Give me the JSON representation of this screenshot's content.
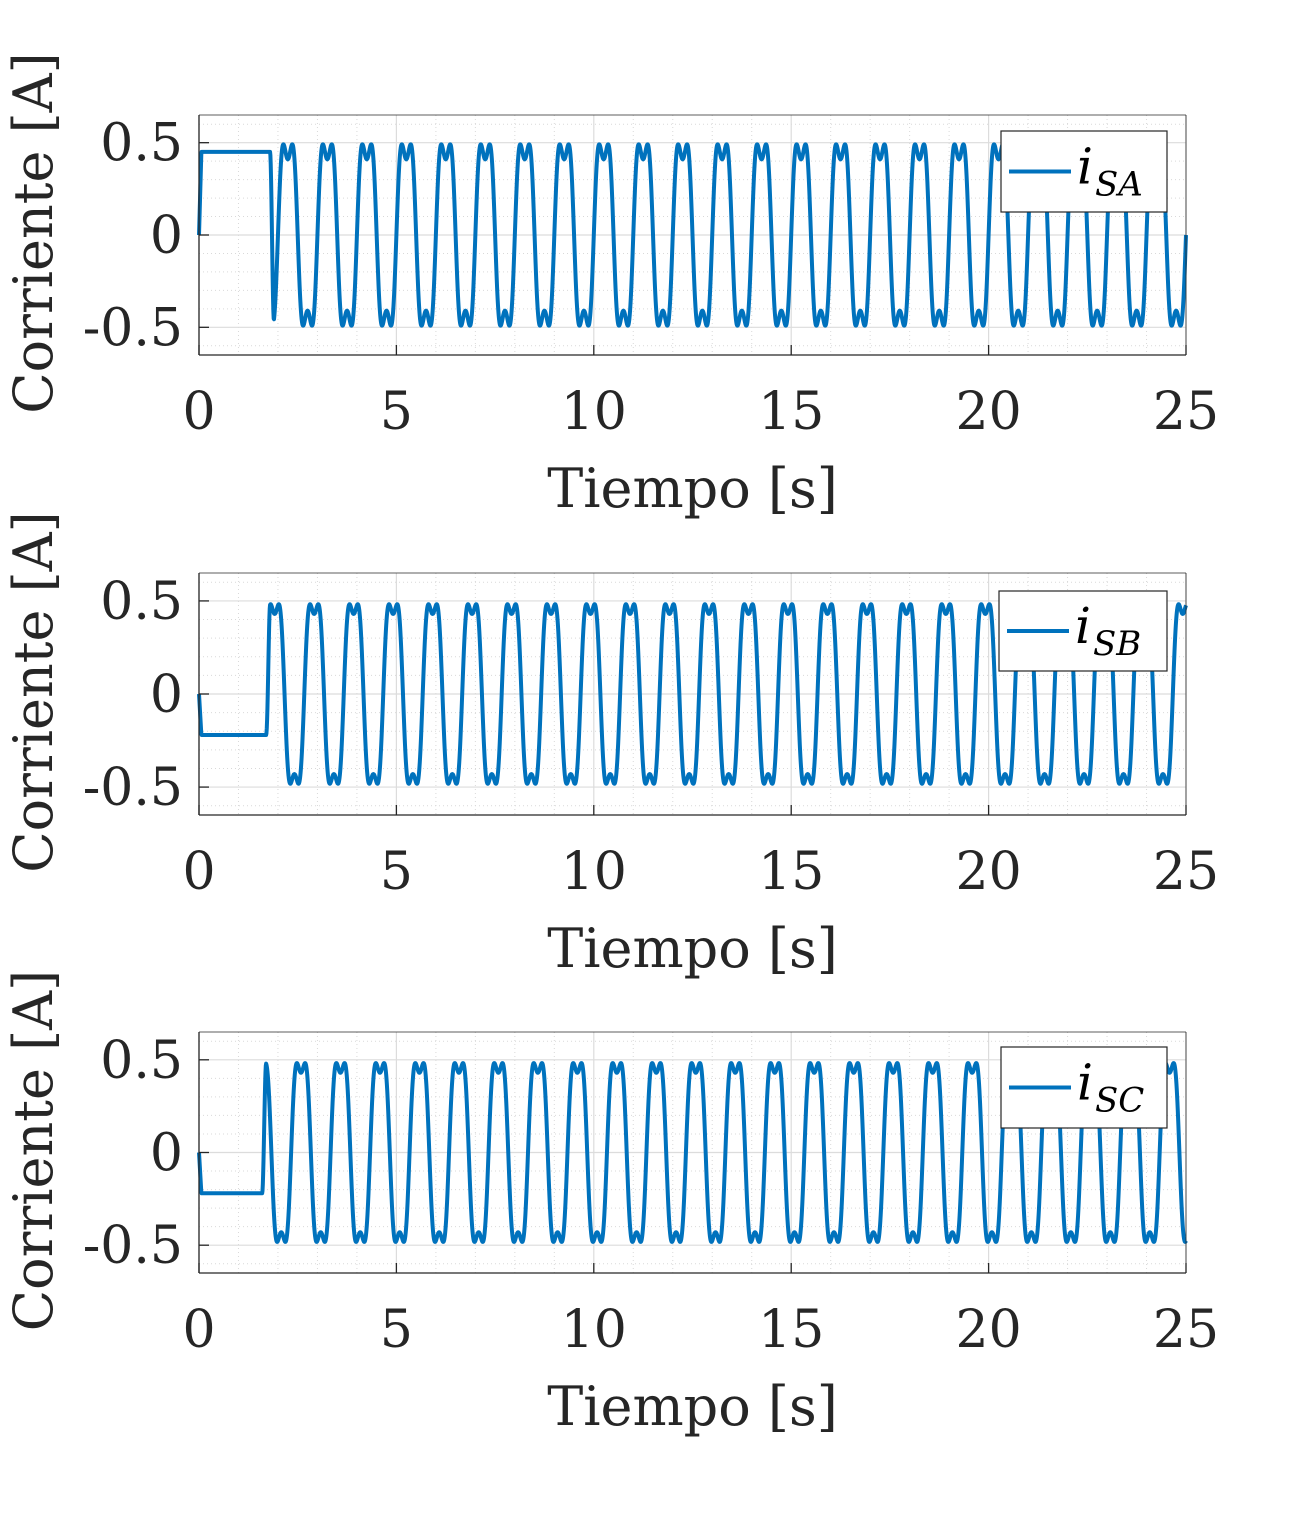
{
  "chart_data": [
    {
      "type": "line",
      "xlabel": "Tiempo [s]",
      "ylabel": "Corriente [A]",
      "xlim": [
        0,
        25
      ],
      "ylim": [
        -0.65,
        0.65
      ],
      "xticks": [
        "0",
        "5",
        "10",
        "15",
        "20",
        "25"
      ],
      "yticks": [
        "-0.5",
        "0",
        "0.5"
      ],
      "ytick_values": [
        -0.5,
        0,
        0.5
      ],
      "grid": true,
      "minor_grid": true,
      "legend_position": "top-right",
      "series": [
        {
          "name_main": "i",
          "name_sub": "SA",
          "color": "#0072BD",
          "description": "steady ~0.45 A until ~1.8 s, then oscillation between about -0.6 and 0.62 A with secondary peaks",
          "startup": {
            "hold_value": 0.45,
            "hold_until": 1.8,
            "rise_end": 0.06
          },
          "oscillation": {
            "start": 1.9,
            "freq_hz": 1.0,
            "a1": 0.55,
            "a3": 0.14,
            "phase": 0.0
          }
        }
      ]
    },
    {
      "type": "line",
      "xlabel": "Tiempo [s]",
      "ylabel": "Corriente [A]",
      "xlim": [
        0,
        25
      ],
      "ylim": [
        -0.65,
        0.65
      ],
      "xticks": [
        "0",
        "5",
        "10",
        "15",
        "20",
        "25"
      ],
      "yticks": [
        "-0.5",
        "0",
        "0.5"
      ],
      "ytick_values": [
        -0.5,
        0,
        0.5
      ],
      "grid": true,
      "minor_grid": true,
      "legend_position": "top-right",
      "series": [
        {
          "name_main": "i",
          "name_sub": "SB",
          "color": "#0072BD",
          "description": "steady ~-0.22 A until ~1.7 s, then oscillation between about -0.58 and 0.62 A",
          "startup": {
            "hold_value": -0.22,
            "hold_until": 1.7,
            "rise_end": 0.06
          },
          "oscillation": {
            "start": 1.8,
            "freq_hz": 1.0,
            "a1": 0.55,
            "a3": 0.12,
            "phase": 2.094
          }
        }
      ]
    },
    {
      "type": "line",
      "xlabel": "Tiempo [s]",
      "ylabel": "Corriente [A]",
      "xlim": [
        0,
        25
      ],
      "ylim": [
        -0.65,
        0.65
      ],
      "xticks": [
        "0",
        "5",
        "10",
        "15",
        "20",
        "25"
      ],
      "yticks": [
        "-0.5",
        "0",
        "0.5"
      ],
      "ytick_values": [
        -0.5,
        0,
        0.5
      ],
      "grid": true,
      "minor_grid": true,
      "legend_position": "top-right",
      "series": [
        {
          "name_main": "i",
          "name_sub": "SC",
          "color": "#0072BD",
          "description": "steady ~-0.22 A until ~1.6 s, then oscillation between about -0.63 and 0.5 A",
          "startup": {
            "hold_value": -0.22,
            "hold_until": 1.6,
            "rise_end": 0.06
          },
          "oscillation": {
            "start": 1.7,
            "freq_hz": 1.0,
            "a1": 0.55,
            "a3": 0.12,
            "phase": 4.189
          }
        }
      ]
    }
  ]
}
